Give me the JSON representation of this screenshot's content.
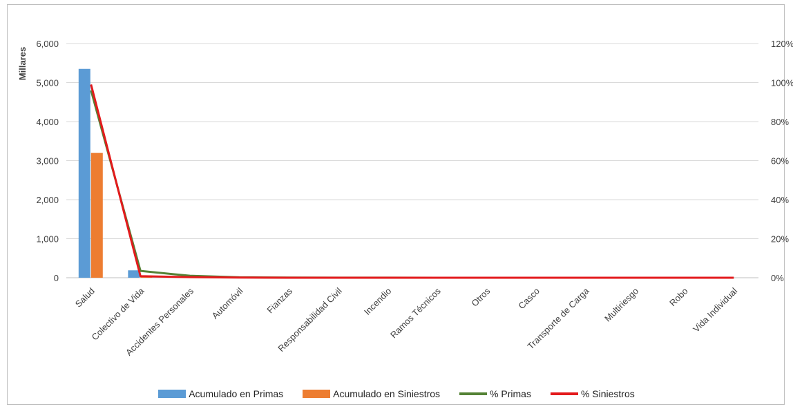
{
  "chart_data": {
    "type": "bar",
    "title": "",
    "xlabel": "",
    "ylabel": "Millares",
    "ylim": [
      0,
      6000
    ],
    "y2lim": [
      0,
      1.2
    ],
    "yticks": [
      "0",
      "1,000",
      "2,000",
      "3,000",
      "4,000",
      "5,000",
      "6,000"
    ],
    "y2ticks": [
      "0%",
      "20%",
      "40%",
      "60%",
      "80%",
      "100%",
      "120%"
    ],
    "grid": true,
    "legend_position": "bottom",
    "categories": [
      "Salud",
      "Colectivo de Vida",
      "Accidentes Personales",
      "Automóvil",
      "Fianzas",
      "Responsabilidad Civil",
      "Incendio",
      "Ramos Técnicos",
      "Otros",
      "Casco",
      "Transporte de Carga",
      "Multiriesgo",
      "Robo",
      "Vida Individual"
    ],
    "series": [
      {
        "name": "Acumulado en Primas",
        "kind": "bar",
        "axis": "left",
        "color": "#5b9bd5",
        "values": [
          5350,
          190,
          25,
          5,
          2,
          1,
          1,
          0,
          0,
          0,
          0,
          0,
          0,
          0
        ]
      },
      {
        "name": "Acumulado en Siniestros",
        "kind": "bar",
        "axis": "left",
        "color": "#ed7d31",
        "values": [
          3200,
          20,
          5,
          1,
          0,
          0,
          0,
          0,
          0,
          0,
          0,
          0,
          0,
          0
        ]
      },
      {
        "name": "% Primas",
        "kind": "line",
        "axis": "right",
        "color": "#548235",
        "values": [
          0.96,
          0.035,
          0.01,
          0.002,
          0.001,
          0.0005,
          0.0003,
          0,
          0,
          0,
          0,
          0,
          0,
          0
        ]
      },
      {
        "name": "% Siniestros",
        "kind": "line",
        "axis": "right",
        "color": "#e31a1c",
        "values": [
          0.99,
          0.008,
          0.003,
          0.001,
          0,
          0,
          0,
          0,
          0,
          0,
          0,
          0,
          0,
          0
        ]
      }
    ]
  }
}
